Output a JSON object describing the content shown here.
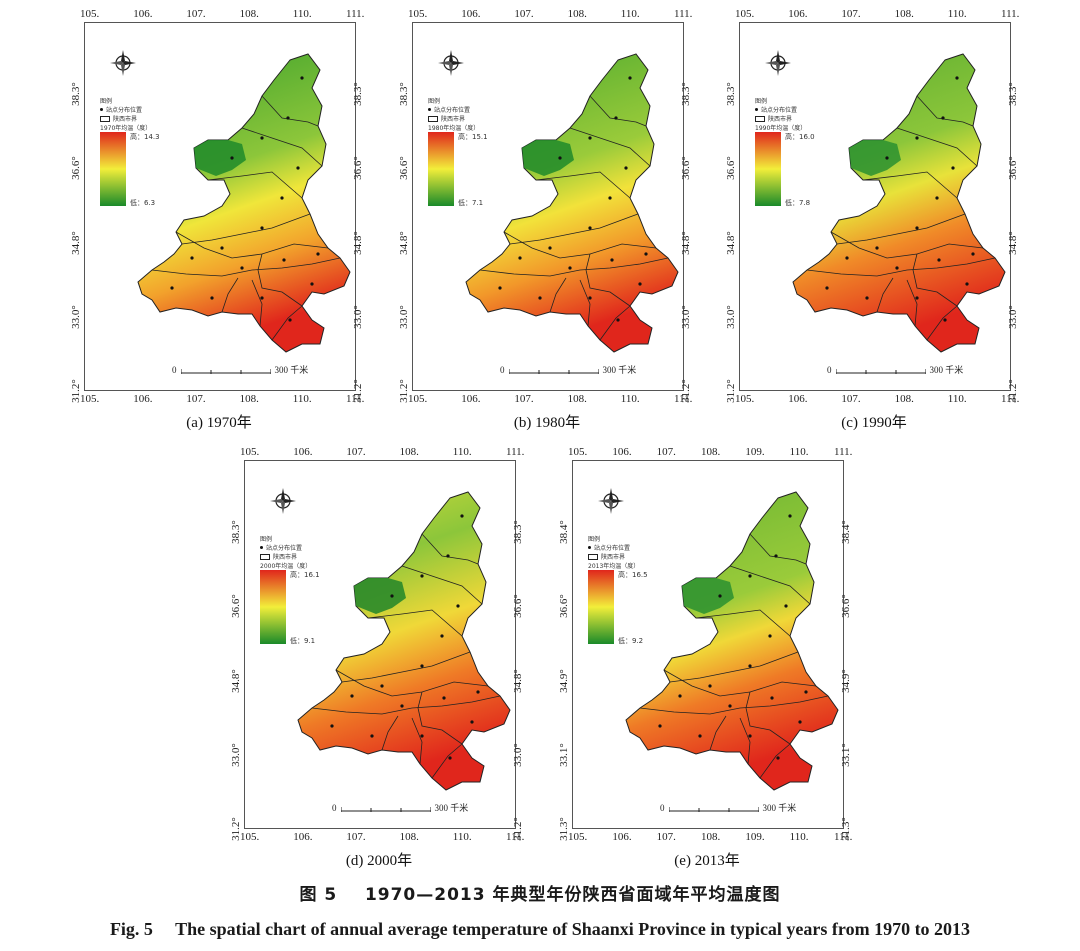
{
  "figure": {
    "caption_cn_num": "图 5",
    "caption_cn_text": "1970—2013 年典型年份陕西省面域年平均温度图",
    "caption_en_num": "Fig. 5",
    "caption_en_text": "The spatial chart of annual average temperature of Shaanxi Province in typical years from 1970 to 2013"
  },
  "legend_common": {
    "header": "图例",
    "station": "站点分布位置",
    "boundary": "陕西市界"
  },
  "scale_bar": {
    "zero": "0",
    "end": "300 千米"
  },
  "colors": {
    "low": "#1a8a2a",
    "mid": "#f2ee3a",
    "high": "#e0261c",
    "boundary": "#222222"
  },
  "panels": [
    {
      "caption": "(a) 1970年",
      "legend_title": "1970年均温（度）",
      "max_label": "高：14.3",
      "min_label": "低：6.3",
      "x_ticks": [
        "105.",
        "106.",
        "107.",
        "108.",
        "110.",
        "111."
      ],
      "y_ticks": [
        "38.3°",
        "36.6°",
        "34.8°",
        "33.0°",
        "31.2°"
      ]
    },
    {
      "caption": "(b) 1980年",
      "legend_title": "1980年均温（度）",
      "max_label": "高：15.1",
      "min_label": "低：7.1",
      "x_ticks": [
        "105.",
        "106.",
        "107.",
        "108.",
        "110.",
        "111."
      ],
      "y_ticks": [
        "38.3°",
        "36.6°",
        "34.8°",
        "33.0°",
        "31.2°"
      ]
    },
    {
      "caption": "(c) 1990年",
      "legend_title": "1990年均温（度）",
      "max_label": "高：16.0",
      "min_label": "低：7.8",
      "x_ticks": [
        "105.",
        "106.",
        "107.",
        "108.",
        "110.",
        "111."
      ],
      "y_ticks": [
        "38.3°",
        "36.6°",
        "34.8°",
        "33.0°",
        "31.2°"
      ]
    },
    {
      "caption": "(d) 2000年",
      "legend_title": "2000年均温（度）",
      "max_label": "高：16.1",
      "min_label": "低：9.1",
      "x_ticks": [
        "105.",
        "106.",
        "107.",
        "108.",
        "110.",
        "111."
      ],
      "y_ticks": [
        "38.3°",
        "36.6°",
        "34.8°",
        "33.0°",
        "31.2°"
      ]
    },
    {
      "caption": "(e) 2013年",
      "legend_title": "2013年均温（度）",
      "max_label": "高：16.5",
      "min_label": "低：9.2",
      "x_ticks": [
        "105.",
        "106.",
        "107.",
        "108.",
        "109.",
        "110.",
        "111."
      ],
      "y_ticks": [
        "38.4°",
        "36.6°",
        "34.9°",
        "33.1°",
        "31.3°"
      ]
    }
  ]
}
